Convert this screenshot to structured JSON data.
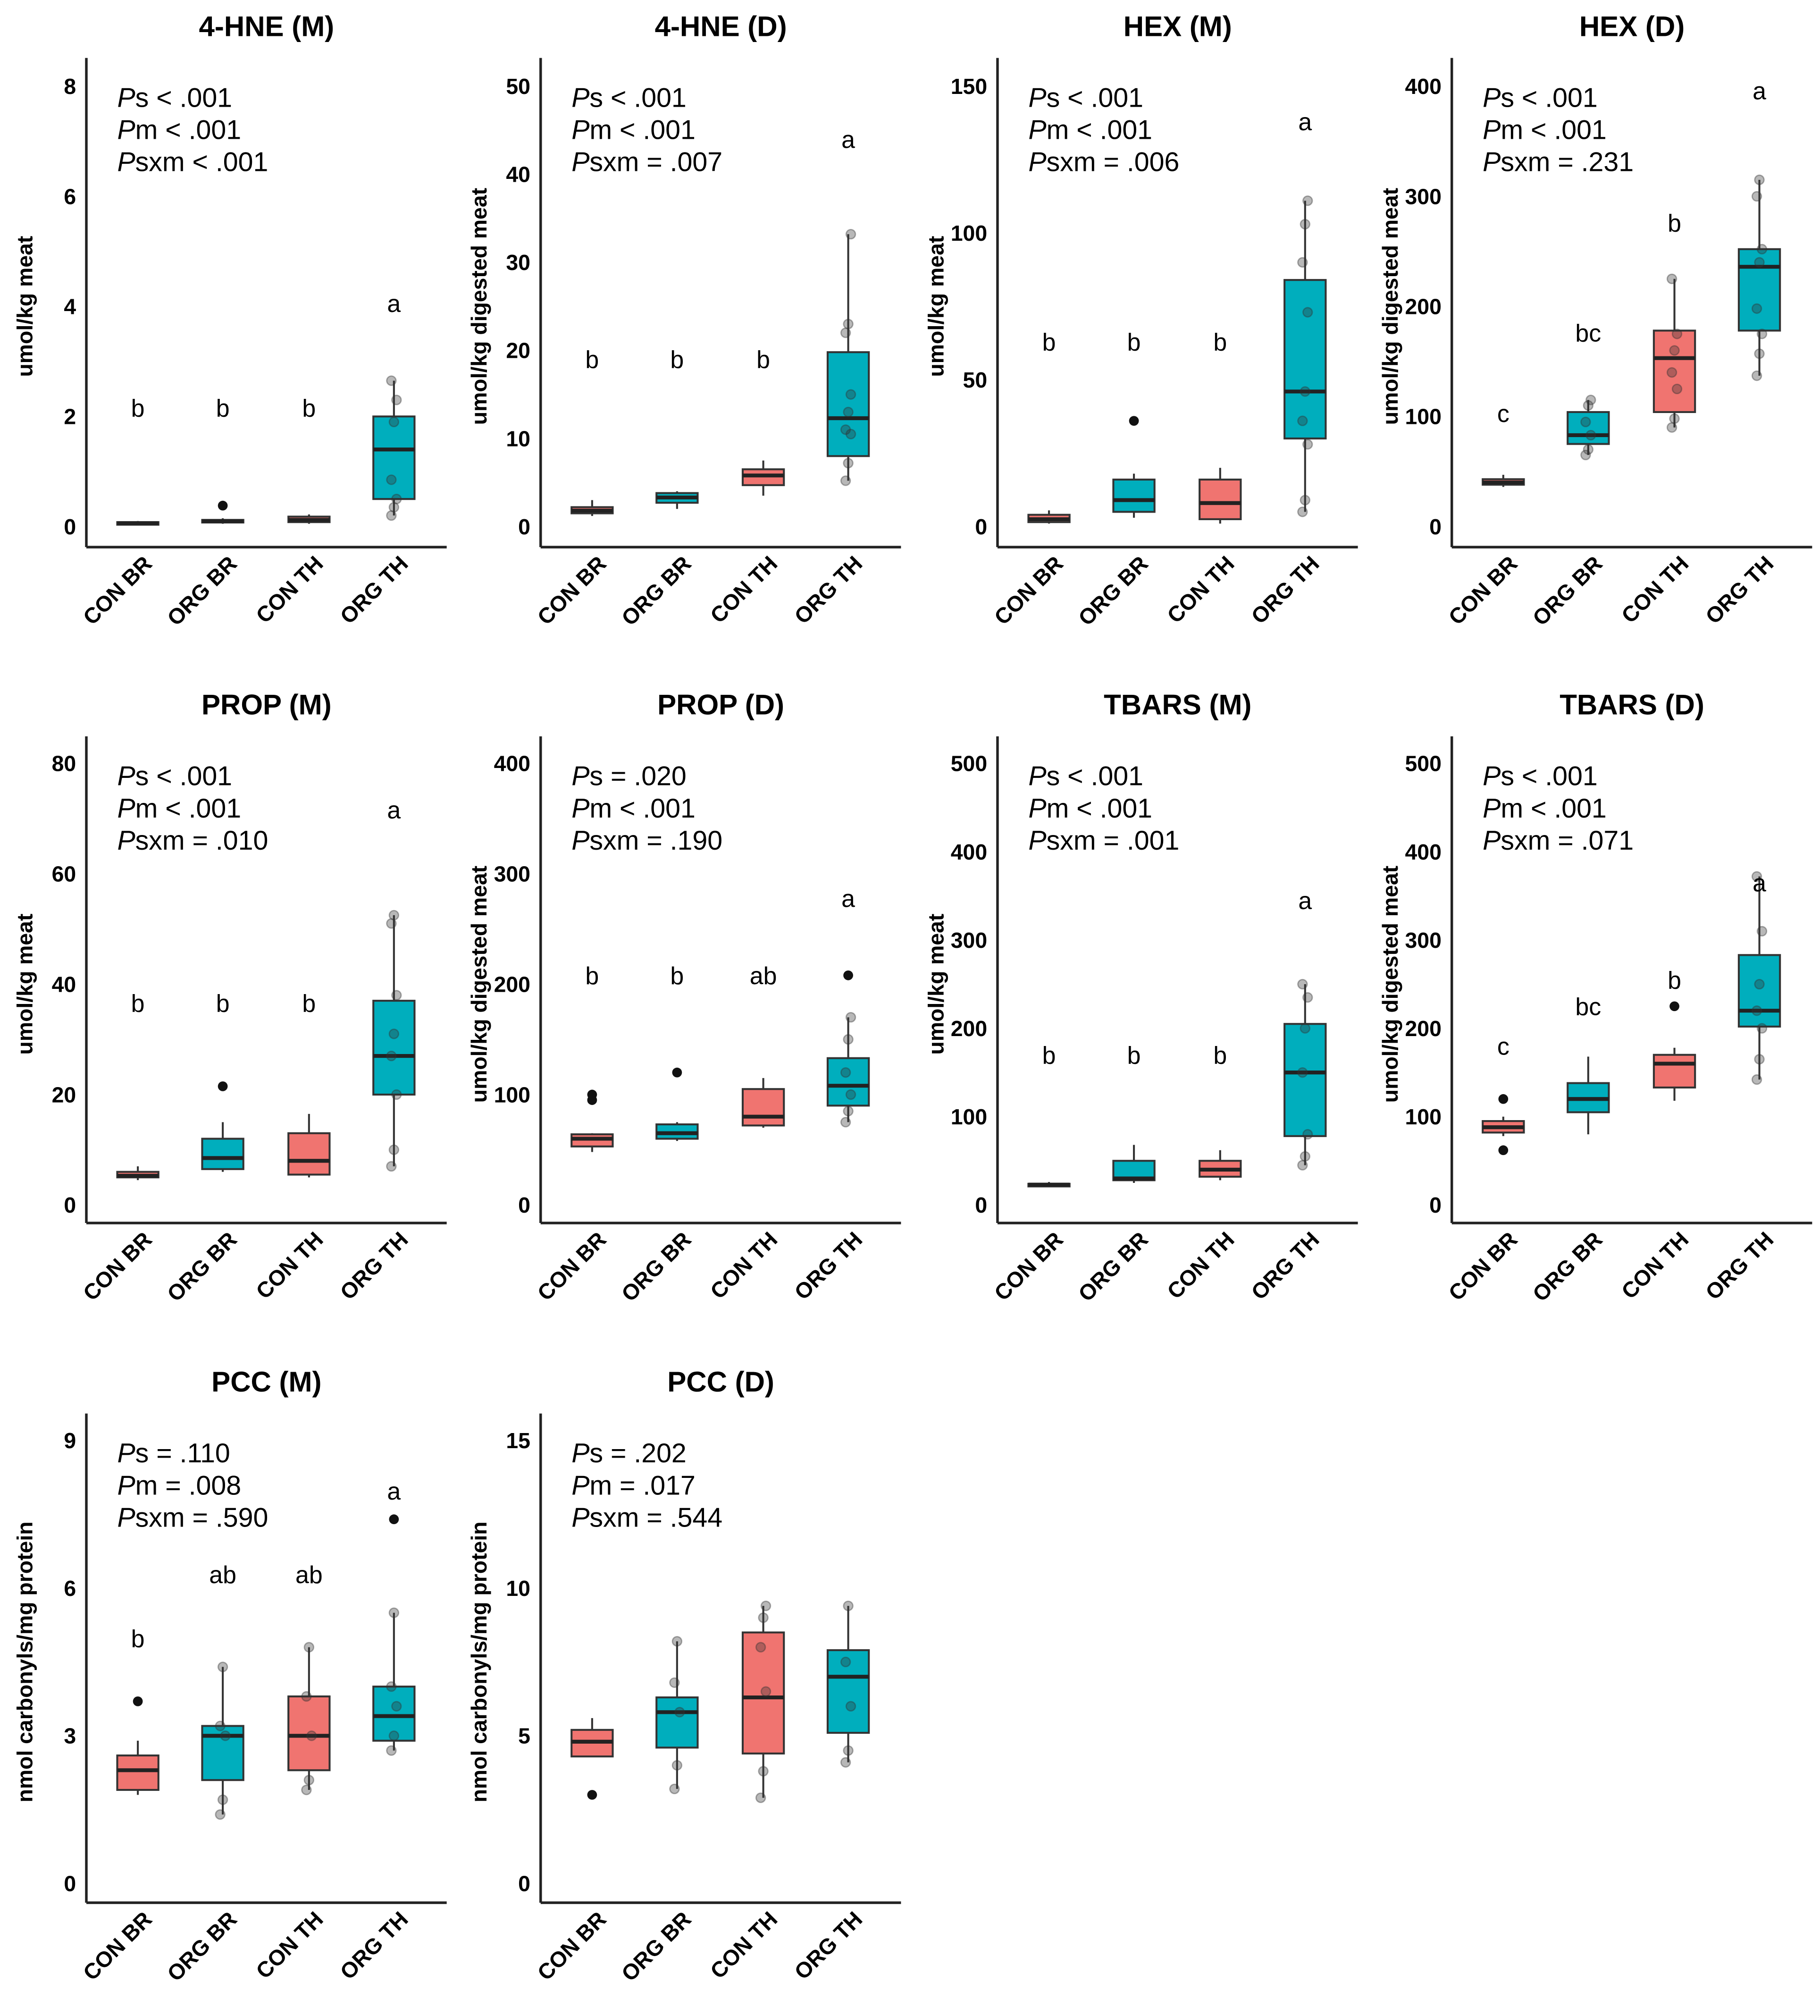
{
  "colors": {
    "CON": "#F07470",
    "ORG": "#00AEBD",
    "outline": "#333333"
  },
  "chart_data": [
    {
      "type": "box",
      "title": "4-HNE (M)",
      "ylabel": "umol/kg meat",
      "ylim": [
        0,
        8
      ],
      "ticks": [
        0,
        2,
        4,
        6,
        8
      ],
      "categories": [
        "CON BR",
        "ORG BR",
        "CON TH",
        "ORG TH"
      ],
      "pvalues": [
        {
          "sub": "s",
          "text": " < .001"
        },
        {
          "sub": "m",
          "text": " < .001"
        },
        {
          "sub": "sxm",
          "text": " < .001"
        }
      ],
      "groups": [
        {
          "box": [
            0.03,
            0.05,
            0.06,
            0.08,
            0.1
          ],
          "outliers": [],
          "letter": "b",
          "letter_y": 2.0
        },
        {
          "box": [
            0.05,
            0.08,
            0.1,
            0.12,
            0.15
          ],
          "outliers": [
            0.38
          ],
          "letter": "b",
          "letter_y": 2.0
        },
        {
          "box": [
            0.05,
            0.08,
            0.12,
            0.18,
            0.22
          ],
          "outliers": [],
          "letter": "b",
          "letter_y": 2.0
        },
        {
          "box": [
            0.2,
            0.5,
            1.4,
            2.0,
            2.65
          ],
          "outliers": [],
          "points": [
            0.2,
            0.35,
            0.5,
            0.85,
            1.9,
            2.3,
            2.65
          ],
          "letter": "a",
          "letter_y": 3.9
        }
      ]
    },
    {
      "type": "box",
      "title": "4-HNE (D)",
      "ylabel": "umol/kg digested meat",
      "ylim": [
        0,
        50
      ],
      "ticks": [
        0,
        10,
        20,
        30,
        40,
        50
      ],
      "categories": [
        "CON BR",
        "ORG BR",
        "CON TH",
        "ORG TH"
      ],
      "pvalues": [
        {
          "sub": "s",
          "text": " < .001"
        },
        {
          "sub": "m",
          "text": " < .001"
        },
        {
          "sub": "sxm",
          "text": " = .007"
        }
      ],
      "groups": [
        {
          "box": [
            1.2,
            1.5,
            1.8,
            2.2,
            3.0
          ],
          "outliers": [],
          "letter": "b",
          "letter_y": 18
        },
        {
          "box": [
            2.0,
            2.7,
            3.3,
            3.8,
            4.0
          ],
          "outliers": [],
          "letter": "b",
          "letter_y": 18
        },
        {
          "box": [
            3.5,
            4.7,
            5.8,
            6.5,
            7.5
          ],
          "outliers": [],
          "letter": "b",
          "letter_y": 18
        },
        {
          "box": [
            5.2,
            8.0,
            12.3,
            19.8,
            33.2
          ],
          "outliers": [],
          "points": [
            5.2,
            7.2,
            10.5,
            11,
            13,
            15,
            22,
            23,
            33.2
          ],
          "letter": "a",
          "letter_y": 43
        }
      ]
    },
    {
      "type": "box",
      "title": "HEX (M)",
      "ylabel": "umol/kg meat",
      "ylim": [
        0,
        150
      ],
      "ticks": [
        0,
        50,
        100,
        150
      ],
      "categories": [
        "CON BR",
        "ORG BR",
        "CON TH",
        "ORG TH"
      ],
      "pvalues": [
        {
          "sub": "s",
          "text": " < .001"
        },
        {
          "sub": "m",
          "text": " < .001"
        },
        {
          "sub": "sxm",
          "text": " = .006"
        }
      ],
      "groups": [
        {
          "box": [
            1,
            1.5,
            2.5,
            4,
            5.5
          ],
          "outliers": [],
          "letter": "b",
          "letter_y": 60
        },
        {
          "box": [
            3,
            5,
            9,
            16,
            18
          ],
          "outliers": [
            36
          ],
          "letter": "b",
          "letter_y": 60
        },
        {
          "box": [
            1,
            2.5,
            8,
            16,
            20
          ],
          "outliers": [],
          "letter": "b",
          "letter_y": 60
        },
        {
          "box": [
            5,
            30,
            46,
            84,
            111
          ],
          "outliers": [],
          "points": [
            5,
            9,
            28,
            36,
            46,
            73,
            90,
            103,
            111
          ],
          "letter": "a",
          "letter_y": 135
        }
      ]
    },
    {
      "type": "box",
      "title": "HEX (D)",
      "ylabel": "umol/kg digested meat",
      "ylim": [
        0,
        400
      ],
      "ticks": [
        0,
        100,
        200,
        300,
        400
      ],
      "categories": [
        "CON BR",
        "ORG BR",
        "CON TH",
        "ORG TH"
      ],
      "pvalues": [
        {
          "sub": "s",
          "text": " < .001"
        },
        {
          "sub": "m",
          "text": " < .001"
        },
        {
          "sub": "sxm",
          "text": " = .231"
        }
      ],
      "groups": [
        {
          "box": [
            36,
            38,
            40,
            43,
            47
          ],
          "outliers": [],
          "letter": "c",
          "letter_y": 95
        },
        {
          "box": [
            65,
            75,
            83,
            104,
            115
          ],
          "outliers": [],
          "points": [
            65,
            70,
            83,
            95,
            110,
            115
          ],
          "letter": "bc",
          "letter_y": 168
        },
        {
          "box": [
            90,
            104,
            153,
            178,
            225
          ],
          "outliers": [],
          "points": [
            90,
            98,
            125,
            140,
            160,
            175,
            225
          ],
          "letter": "b",
          "letter_y": 268
        },
        {
          "box": [
            137,
            178,
            236,
            252,
            315
          ],
          "outliers": [],
          "points": [
            137,
            157,
            175,
            198,
            240,
            252,
            300,
            315
          ],
          "letter": "a",
          "letter_y": 388
        }
      ]
    },
    {
      "type": "box",
      "title": "PROP (M)",
      "ylabel": "umol/kg meat",
      "ylim": [
        0,
        80
      ],
      "ticks": [
        0,
        20,
        40,
        60,
        80
      ],
      "categories": [
        "CON BR",
        "ORG BR",
        "CON TH",
        "ORG TH"
      ],
      "pvalues": [
        {
          "sub": "s",
          "text": " < .001"
        },
        {
          "sub": "m",
          "text": " < .001"
        },
        {
          "sub": "sxm",
          "text": " = .010"
        }
      ],
      "groups": [
        {
          "box": [
            4.5,
            5,
            5.3,
            6,
            7
          ],
          "outliers": [],
          "letter": "b",
          "letter_y": 35
        },
        {
          "box": [
            6,
            6.5,
            8.5,
            12,
            15
          ],
          "outliers": [
            21.5
          ],
          "letter": "b",
          "letter_y": 35
        },
        {
          "box": [
            5,
            5.5,
            8,
            13,
            16.5
          ],
          "outliers": [],
          "letter": "b",
          "letter_y": 35
        },
        {
          "box": [
            7,
            20,
            27,
            37,
            52.5
          ],
          "outliers": [],
          "points": [
            7,
            10,
            20,
            27,
            31,
            38,
            51,
            52.5
          ],
          "letter": "a",
          "letter_y": 70
        }
      ]
    },
    {
      "type": "box",
      "title": "PROP (D)",
      "ylabel": "umol/kg digested meat",
      "ylim": [
        0,
        400
      ],
      "ticks": [
        0,
        100,
        200,
        300,
        400
      ],
      "categories": [
        "CON BR",
        "ORG BR",
        "CON TH",
        "ORG TH"
      ],
      "pvalues": [
        {
          "sub": "s",
          "text": " = .020"
        },
        {
          "sub": "m",
          "text": " < .001"
        },
        {
          "sub": "sxm",
          "text": " = .190"
        }
      ],
      "groups": [
        {
          "box": [
            48,
            53,
            60,
            64,
            65
          ],
          "outliers": [
            95,
            100
          ],
          "letter": "b",
          "letter_y": 200
        },
        {
          "box": [
            58,
            60,
            65,
            73,
            75
          ],
          "outliers": [
            120
          ],
          "letter": "b",
          "letter_y": 200
        },
        {
          "box": [
            70,
            72,
            80,
            105,
            115
          ],
          "outliers": [],
          "letter": "ab",
          "letter_y": 200
        },
        {
          "box": [
            75,
            90,
            108,
            133,
            170
          ],
          "outliers": [
            208
          ],
          "points": [
            75,
            85,
            100,
            120,
            150,
            170
          ],
          "letter": "a",
          "letter_y": 270
        }
      ]
    },
    {
      "type": "box",
      "title": "TBARS (M)",
      "ylabel": "umol/kg meat",
      "ylim": [
        0,
        500
      ],
      "ticks": [
        0,
        100,
        200,
        300,
        400,
        500
      ],
      "categories": [
        "CON BR",
        "ORG BR",
        "CON TH",
        "ORG TH"
      ],
      "pvalues": [
        {
          "sub": "s",
          "text": " < .001"
        },
        {
          "sub": "m",
          "text": " < .001"
        },
        {
          "sub": "sxm",
          "text": " = .001"
        }
      ],
      "groups": [
        {
          "box": [
            20,
            21,
            23,
            24,
            26
          ],
          "outliers": [],
          "letter": "b",
          "letter_y": 160
        },
        {
          "box": [
            25,
            28,
            30,
            50,
            68
          ],
          "outliers": [],
          "letter": "b",
          "letter_y": 160
        },
        {
          "box": [
            28,
            32,
            40,
            50,
            62
          ],
          "outliers": [],
          "letter": "b",
          "letter_y": 160
        },
        {
          "box": [
            45,
            78,
            150,
            205,
            250
          ],
          "outliers": [],
          "points": [
            45,
            55,
            80,
            150,
            200,
            235,
            250
          ],
          "letter": "a",
          "letter_y": 335
        }
      ]
    },
    {
      "type": "box",
      "title": "TBARS (D)",
      "ylabel": "umol/kg digested meat",
      "ylim": [
        0,
        500
      ],
      "ticks": [
        0,
        100,
        200,
        300,
        400,
        500
      ],
      "categories": [
        "CON BR",
        "ORG BR",
        "CON TH",
        "ORG TH"
      ],
      "pvalues": [
        {
          "sub": "s",
          "text": " < .001"
        },
        {
          "sub": "m",
          "text": " < .001"
        },
        {
          "sub": "sxm",
          "text": " = .071"
        }
      ],
      "groups": [
        {
          "box": [
            78,
            82,
            88,
            95,
            100
          ],
          "outliers": [
            62,
            120
          ],
          "letter": "c",
          "letter_y": 170
        },
        {
          "box": [
            80,
            105,
            120,
            138,
            168
          ],
          "outliers": [],
          "letter": "bc",
          "letter_y": 215
        },
        {
          "box": [
            118,
            133,
            160,
            170,
            178
          ],
          "outliers": [
            225
          ],
          "letter": "b",
          "letter_y": 245
        },
        {
          "box": [
            142,
            202,
            220,
            283,
            372
          ],
          "outliers": [],
          "points": [
            142,
            165,
            200,
            220,
            250,
            310,
            372
          ],
          "letter": "a",
          "letter_y": 355
        }
      ]
    },
    {
      "type": "box",
      "title": "PCC (M)",
      "ylabel": "nmol carbonyls/mg protein",
      "ylim": [
        0,
        9
      ],
      "ticks": [
        0,
        3,
        6,
        9
      ],
      "categories": [
        "CON BR",
        "ORG BR",
        "CON TH",
        "ORG TH"
      ],
      "pvalues": [
        {
          "sub": "s",
          "text": " = .110"
        },
        {
          "sub": "m",
          "text": " = .008"
        },
        {
          "sub": "sxm",
          "text": " = .590"
        }
      ],
      "groups": [
        {
          "box": [
            1.8,
            1.9,
            2.3,
            2.6,
            2.9
          ],
          "outliers": [
            3.7
          ],
          "letter": "b",
          "letter_y": 4.8
        },
        {
          "box": [
            1.4,
            2.1,
            3.0,
            3.2,
            4.4
          ],
          "outliers": [],
          "points": [
            1.4,
            1.7,
            3.0,
            3.2,
            4.4
          ],
          "letter": "ab",
          "letter_y": 6.1
        },
        {
          "box": [
            1.9,
            2.3,
            3.0,
            3.8,
            4.8
          ],
          "outliers": [],
          "points": [
            1.9,
            2.1,
            3.0,
            3.8,
            4.8
          ],
          "letter": "ab",
          "letter_y": 6.1
        },
        {
          "box": [
            2.7,
            2.9,
            3.4,
            4.0,
            5.5
          ],
          "outliers": [
            7.4
          ],
          "points": [
            2.7,
            3.0,
            3.6,
            4.0,
            5.5
          ],
          "letter": "a",
          "letter_y": 7.8
        }
      ]
    },
    {
      "type": "box",
      "title": "PCC (D)",
      "ylabel": "nmol carbonyls/mg protein",
      "ylim": [
        0,
        15
      ],
      "ticks": [
        0,
        5,
        10,
        15
      ],
      "categories": [
        "CON BR",
        "ORG BR",
        "CON TH",
        "ORG TH"
      ],
      "pvalues": [
        {
          "sub": "s",
          "text": " = .202"
        },
        {
          "sub": "m",
          "text": " = .017"
        },
        {
          "sub": "sxm",
          "text": " = .544"
        }
      ],
      "groups": [
        {
          "box": [
            4.3,
            4.3,
            4.8,
            5.2,
            5.6
          ],
          "outliers": [
            3.0
          ],
          "letter": "",
          "letter_y": null
        },
        {
          "box": [
            3.2,
            4.6,
            5.8,
            6.3,
            8.2
          ],
          "outliers": [],
          "points": [
            3.2,
            4.0,
            5.8,
            6.8,
            8.2
          ],
          "letter": "",
          "letter_y": null
        },
        {
          "box": [
            2.9,
            4.4,
            6.3,
            8.5,
            9.4
          ],
          "outliers": [],
          "points": [
            2.9,
            3.8,
            6.5,
            8.0,
            9.0,
            9.4
          ],
          "letter": "",
          "letter_y": null
        },
        {
          "box": [
            4.1,
            5.1,
            7.0,
            7.9,
            9.4
          ],
          "outliers": [],
          "points": [
            4.1,
            4.5,
            6.0,
            7.5,
            9.4
          ],
          "letter": "",
          "letter_y": null
        }
      ]
    }
  ]
}
